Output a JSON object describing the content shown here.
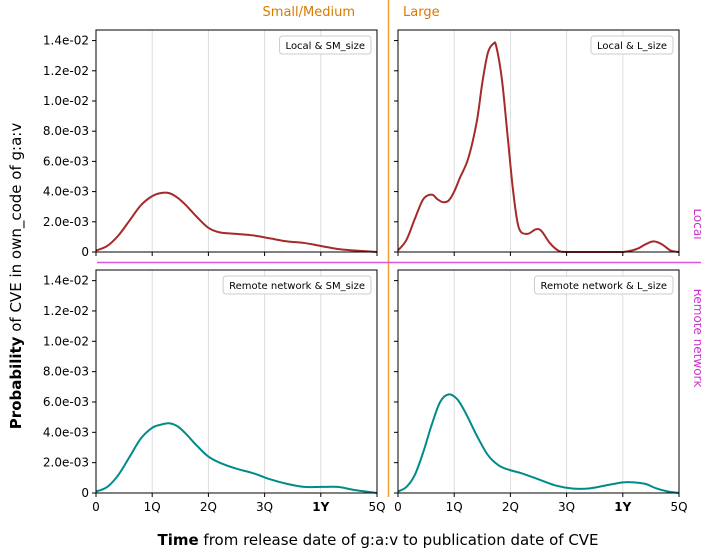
{
  "figure": {
    "ylabel_bold": "Probability",
    "ylabel_rest": " of CVE in own_code of g:a:v",
    "xlabel_bold": "Time",
    "xlabel_rest": " from release date of g:a:v to publication date of CVE",
    "column_labels": [
      "Small/Medium",
      "Large"
    ],
    "row_labels": [
      "Local",
      "Remote network"
    ],
    "column_label_color": "#d97a00",
    "row_label_color": "#cc33cc",
    "separator_vertical_color": "#f0a030",
    "separator_horizontal_color": "#dd55dd"
  },
  "axes": {
    "xticks": [
      0,
      1,
      2,
      3,
      4,
      5
    ],
    "xtick_labels": [
      "0",
      "1Q",
      "2Q",
      "3Q",
      "1Y",
      "5Q"
    ],
    "xtick_bold": [
      false,
      false,
      false,
      false,
      true,
      false
    ],
    "xlim": [
      0,
      5
    ],
    "yticks": [
      0,
      0.002,
      0.004,
      0.006,
      0.008,
      0.01,
      0.012,
      0.014
    ],
    "ytick_labels": [
      "0",
      "2.0e-03",
      "4.0e-03",
      "6.0e-03",
      "8.0e-03",
      "1.0e-02",
      "1.2e-02",
      "1.4e-02"
    ],
    "ylim": [
      0,
      0.0147
    ],
    "grid_x": true
  },
  "chart_data": [
    {
      "type": "line",
      "panel": "top-left",
      "legend": "Local & SM_size",
      "color": "#a52a2a",
      "x": [
        0,
        0.2,
        0.4,
        0.6,
        0.8,
        1.0,
        1.15,
        1.3,
        1.45,
        1.6,
        1.8,
        2.0,
        2.2,
        2.5,
        2.8,
        3.1,
        3.4,
        3.7,
        4.0,
        4.3,
        4.6,
        5.0
      ],
      "y": [
        0.0001,
        0.0004,
        0.0011,
        0.0021,
        0.0031,
        0.0037,
        0.0039,
        0.0039,
        0.0036,
        0.0031,
        0.0023,
        0.0016,
        0.0013,
        0.0012,
        0.0011,
        0.0009,
        0.0007,
        0.0006,
        0.0004,
        0.0002,
        0.0001,
        0.0
      ]
    },
    {
      "type": "line",
      "panel": "top-right",
      "legend": "Local & L_size",
      "color": "#a52a2a",
      "x": [
        0,
        0.15,
        0.3,
        0.45,
        0.6,
        0.7,
        0.8,
        0.9,
        1.0,
        1.1,
        1.25,
        1.4,
        1.5,
        1.6,
        1.7,
        1.75,
        1.85,
        1.95,
        2.05,
        2.15,
        2.3,
        2.45,
        2.55,
        2.7,
        2.85,
        3.0,
        3.5,
        4.0,
        4.25,
        4.4,
        4.55,
        4.7,
        4.85,
        5.0
      ],
      "y": [
        0.0001,
        0.0008,
        0.0022,
        0.0035,
        0.0038,
        0.0035,
        0.0033,
        0.0034,
        0.004,
        0.0049,
        0.0062,
        0.0086,
        0.0112,
        0.0132,
        0.0138,
        0.0136,
        0.0114,
        0.0077,
        0.004,
        0.0016,
        0.0012,
        0.0015,
        0.0014,
        0.0006,
        0.0001,
        0.0,
        0.0,
        0.0,
        0.0002,
        0.0005,
        0.0007,
        0.0005,
        0.0001,
        0.0
      ]
    },
    {
      "type": "line",
      "panel": "bottom-left",
      "legend": "Remote network & SM_size",
      "color": "#008b8b",
      "x": [
        0,
        0.2,
        0.4,
        0.6,
        0.8,
        1.0,
        1.15,
        1.3,
        1.45,
        1.6,
        1.8,
        2.0,
        2.2,
        2.5,
        2.8,
        3.1,
        3.4,
        3.7,
        4.0,
        4.3,
        4.6,
        5.0
      ],
      "y": [
        0.0001,
        0.0004,
        0.0012,
        0.0024,
        0.0036,
        0.0043,
        0.0045,
        0.0046,
        0.0044,
        0.0039,
        0.0031,
        0.0024,
        0.002,
        0.0016,
        0.0013,
        0.0009,
        0.0006,
        0.0004,
        0.0004,
        0.0004,
        0.0002,
        0.0
      ]
    },
    {
      "type": "line",
      "panel": "bottom-right",
      "legend": "Remote network & L_size",
      "color": "#008b8b",
      "x": [
        0,
        0.15,
        0.3,
        0.45,
        0.6,
        0.75,
        0.9,
        1.05,
        1.2,
        1.4,
        1.6,
        1.8,
        2.0,
        2.2,
        2.5,
        2.8,
        3.1,
        3.4,
        3.7,
        4.0,
        4.2,
        4.4,
        4.6,
        4.8,
        5.0
      ],
      "y": [
        0.0001,
        0.0004,
        0.0012,
        0.0027,
        0.0045,
        0.006,
        0.0065,
        0.0062,
        0.0053,
        0.0038,
        0.0025,
        0.0018,
        0.0015,
        0.0013,
        0.0009,
        0.0005,
        0.0003,
        0.0003,
        0.0005,
        0.0007,
        0.0007,
        0.0006,
        0.0003,
        0.0001,
        0.0
      ]
    }
  ]
}
